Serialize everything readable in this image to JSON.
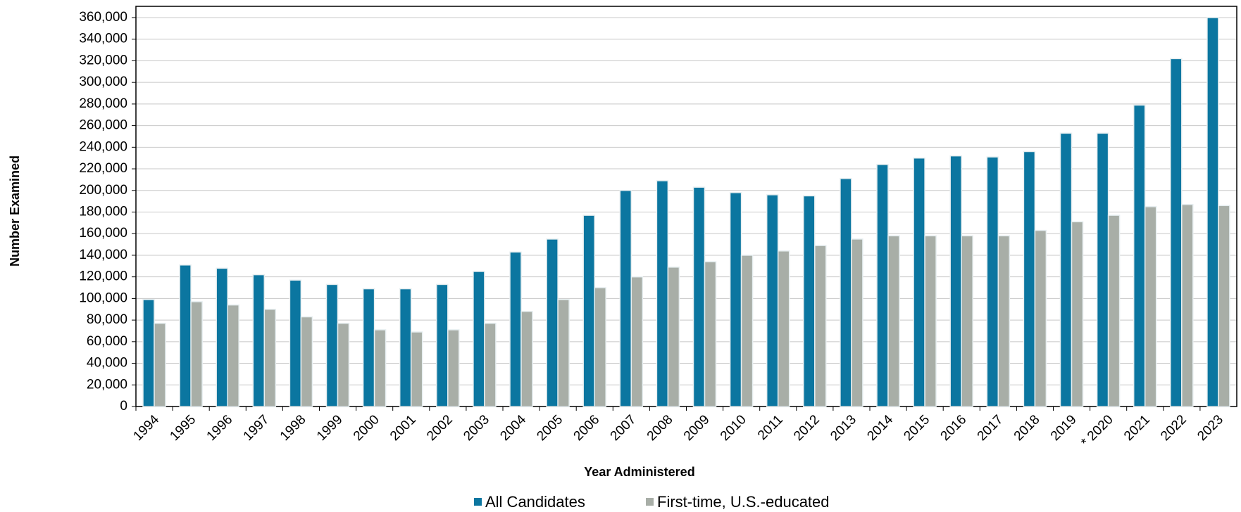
{
  "chart_data": {
    "type": "bar",
    "x_label": "Year Administered",
    "y_label": "Number Examined",
    "categories": [
      "1994",
      "1995",
      "1996",
      "1997",
      "1998",
      "1999",
      "2000",
      "2001",
      "2002",
      "2003",
      "2004",
      "2005",
      "2006",
      "2007",
      "2008",
      "2009",
      "2010",
      "2011",
      "2012",
      "2013",
      "2014",
      "2015",
      "2016",
      "2017",
      "2018",
      "2019",
      "* 2020",
      "2021",
      "2022",
      "2023"
    ],
    "series": [
      {
        "name": "All Candidates",
        "color": "#0b76a0",
        "values": [
          99000,
          131000,
          128000,
          122000,
          117000,
          113000,
          109000,
          109000,
          113000,
          125000,
          143000,
          155000,
          177000,
          200000,
          209000,
          203000,
          198000,
          196000,
          195000,
          211000,
          224000,
          230000,
          232000,
          231000,
          236000,
          253000,
          253000,
          279000,
          322000,
          360000
        ]
      },
      {
        "name": "First-time, U.S.-educated",
        "color": "#a8aea7",
        "values": [
          77000,
          97000,
          94000,
          90000,
          83000,
          77000,
          71000,
          69000,
          71000,
          77000,
          88000,
          99000,
          110000,
          120000,
          129000,
          134000,
          140000,
          144000,
          149000,
          155000,
          158000,
          158000,
          158000,
          158000,
          163000,
          171000,
          177000,
          185000,
          187000,
          186000
        ]
      }
    ],
    "ylim": [
      0,
      360000
    ],
    "yticks": [
      0,
      {
        "value": 20000,
        "label": "20,000"
      },
      {
        "value": 40000,
        "label": "40,000"
      },
      {
        "value": 60000,
        "label": "60,000"
      },
      {
        "value": 80000,
        "label": "80,000"
      },
      {
        "value": 100000,
        "label": "100,000"
      },
      {
        "value": 120000,
        "label": "120,000"
      },
      {
        "value": 140000,
        "label": "140,000"
      },
      {
        "value": 160000,
        "label": "160,000"
      },
      {
        "value": 180000,
        "label": "180,000"
      },
      {
        "value": 200000,
        "label": "200,000"
      },
      {
        "value": 220000,
        "label": "220,000"
      },
      {
        "value": 240000,
        "label": "240,000"
      },
      {
        "value": 260000,
        "label": "260,000"
      },
      {
        "value": 280000,
        "label": "280,000"
      },
      {
        "value": 300000,
        "label": "300,000"
      },
      {
        "value": 320000,
        "label": "320,000"
      },
      {
        "value": 340000,
        "label": "340,000"
      },
      {
        "value": 360000,
        "label": "360,000"
      }
    ],
    "grid": true,
    "legend": "bottom"
  }
}
